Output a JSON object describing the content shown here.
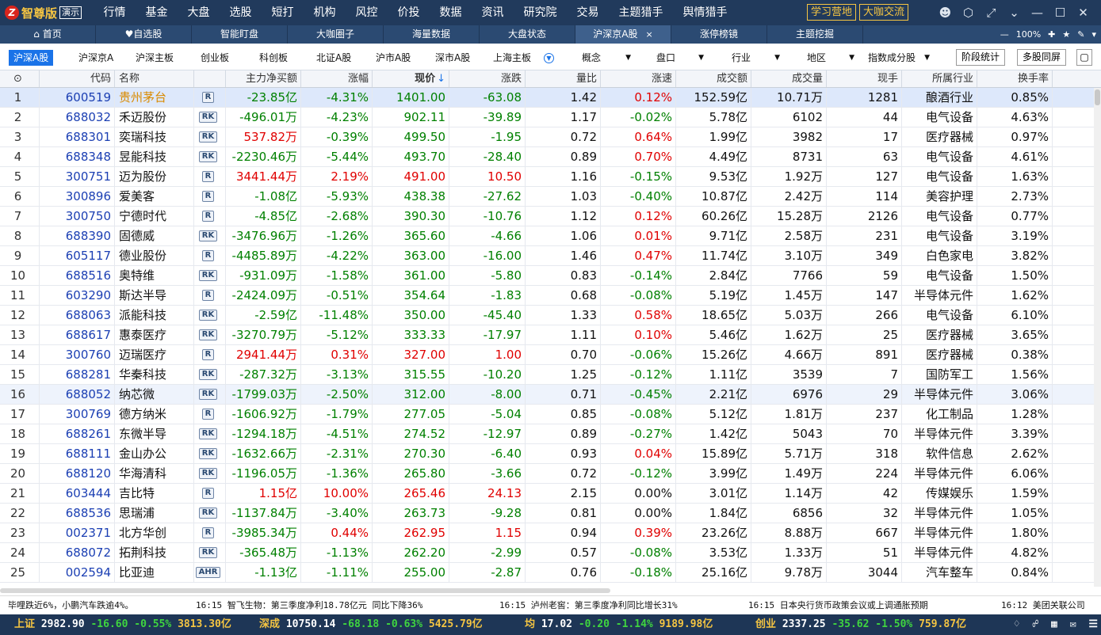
{
  "app": {
    "logo_glyph": "Z",
    "logo_text": "智尊版",
    "demo_label": "演示"
  },
  "menu": [
    "行情",
    "基金",
    "大盘",
    "选股",
    "短打",
    "机构",
    "风控",
    "价投",
    "数据",
    "资讯",
    "研究院",
    "交易",
    "主题猎手",
    "舆情猎手"
  ],
  "top_buttons": [
    "学习营地",
    "大咖交流"
  ],
  "window_controls": [
    "user-icon",
    "settings-icon",
    "shrink-icon",
    "chevron-down-icon",
    "minimize-icon",
    "maximize-icon",
    "close-icon"
  ],
  "tabs": [
    {
      "label": "首页",
      "icon": "home-icon"
    },
    {
      "label": "自选股",
      "icon": "heart-icon"
    },
    {
      "label": "智能盯盘"
    },
    {
      "label": "大咖圈子"
    },
    {
      "label": "海量数据"
    },
    {
      "label": "大盘状态"
    },
    {
      "label": "沪深京A股",
      "active": true,
      "close": "×"
    },
    {
      "label": "涨停榜镜"
    },
    {
      "label": "主题挖掘"
    }
  ],
  "zoom": "100%",
  "filters": {
    "items": [
      "沪深A股",
      "沪深京A",
      "沪深主板",
      "创业板",
      "科创板",
      "北证A股",
      "沪市A股",
      "深市A股",
      "上海主板"
    ],
    "dropdowns": [
      "概念",
      "盘口",
      "行业",
      "地区",
      "指数成分股"
    ],
    "buttons": [
      "阶段统计",
      "多股同屏"
    ]
  },
  "table": {
    "headers": [
      "",
      "代码",
      "名称",
      "",
      "主力净买额",
      "涨幅",
      "现价",
      "涨跌",
      "量比",
      "涨速",
      "成交额",
      "成交量",
      "现手",
      "所属行业",
      "换手率"
    ],
    "sort_mark": "↓",
    "rows": [
      [
        "1",
        "600519",
        "贵州茅台",
        "R",
        "-23.85亿",
        "-4.31%",
        "1401.00",
        "-63.08",
        "1.42",
        "0.12%",
        "152.59亿",
        "10.71万",
        "1281",
        "酿酒行业",
        "0.85%"
      ],
      [
        "2",
        "688032",
        "禾迈股份",
        "RK",
        "-496.01万",
        "-4.23%",
        "902.11",
        "-39.89",
        "1.17",
        "-0.02%",
        "5.78亿",
        "6102",
        "44",
        "电气设备",
        "4.63%"
      ],
      [
        "3",
        "688301",
        "奕瑞科技",
        "RK",
        "537.82万",
        "-0.39%",
        "499.50",
        "-1.95",
        "0.72",
        "0.64%",
        "1.99亿",
        "3982",
        "17",
        "医疗器械",
        "0.97%"
      ],
      [
        "4",
        "688348",
        "昱能科技",
        "RK",
        "-2230.46万",
        "-5.44%",
        "493.70",
        "-28.40",
        "0.89",
        "0.70%",
        "4.49亿",
        "8731",
        "63",
        "电气设备",
        "4.61%"
      ],
      [
        "5",
        "300751",
        "迈为股份",
        "R",
        "3441.44万",
        "2.19%",
        "491.00",
        "10.50",
        "1.16",
        "-0.15%",
        "9.53亿",
        "1.92万",
        "127",
        "电气设备",
        "1.63%"
      ],
      [
        "6",
        "300896",
        "爱美客",
        "R",
        "-1.08亿",
        "-5.93%",
        "438.38",
        "-27.62",
        "1.03",
        "-0.40%",
        "10.87亿",
        "2.42万",
        "114",
        "美容护理",
        "2.73%"
      ],
      [
        "7",
        "300750",
        "宁德时代",
        "R",
        "-4.85亿",
        "-2.68%",
        "390.30",
        "-10.76",
        "1.12",
        "0.12%",
        "60.26亿",
        "15.28万",
        "2126",
        "电气设备",
        "0.77%"
      ],
      [
        "8",
        "688390",
        "固德威",
        "RK",
        "-3476.96万",
        "-1.26%",
        "365.60",
        "-4.66",
        "1.06",
        "0.01%",
        "9.71亿",
        "2.58万",
        "231",
        "电气设备",
        "3.19%"
      ],
      [
        "9",
        "605117",
        "德业股份",
        "R",
        "-4485.89万",
        "-4.22%",
        "363.00",
        "-16.00",
        "1.46",
        "0.47%",
        "11.74亿",
        "3.10万",
        "349",
        "白色家电",
        "3.82%"
      ],
      [
        "10",
        "688516",
        "奥特维",
        "RK",
        "-931.09万",
        "-1.58%",
        "361.00",
        "-5.80",
        "0.83",
        "-0.14%",
        "2.84亿",
        "7766",
        "59",
        "电气设备",
        "1.50%"
      ],
      [
        "11",
        "603290",
        "斯达半导",
        "R",
        "-2424.09万",
        "-0.51%",
        "354.64",
        "-1.83",
        "0.68",
        "-0.08%",
        "5.19亿",
        "1.45万",
        "147",
        "半导体元件",
        "1.62%"
      ],
      [
        "12",
        "688063",
        "派能科技",
        "RK",
        "-2.59亿",
        "-11.48%",
        "350.00",
        "-45.40",
        "1.33",
        "0.58%",
        "18.65亿",
        "5.03万",
        "266",
        "电气设备",
        "6.10%"
      ],
      [
        "13",
        "688617",
        "惠泰医疗",
        "RK",
        "-3270.79万",
        "-5.12%",
        "333.33",
        "-17.97",
        "1.11",
        "0.10%",
        "5.46亿",
        "1.62万",
        "25",
        "医疗器械",
        "3.65%"
      ],
      [
        "14",
        "300760",
        "迈瑞医疗",
        "R",
        "2941.44万",
        "0.31%",
        "327.00",
        "1.00",
        "0.70",
        "-0.06%",
        "15.26亿",
        "4.66万",
        "891",
        "医疗器械",
        "0.38%"
      ],
      [
        "15",
        "688281",
        "华秦科技",
        "RK",
        "-287.32万",
        "-3.13%",
        "315.55",
        "-10.20",
        "1.25",
        "-0.12%",
        "1.11亿",
        "3539",
        "7",
        "国防军工",
        "1.56%"
      ],
      [
        "16",
        "688052",
        "纳芯微",
        "RK",
        "-1799.03万",
        "-2.50%",
        "312.00",
        "-8.00",
        "0.71",
        "-0.45%",
        "2.21亿",
        "6976",
        "29",
        "半导体元件",
        "3.06%"
      ],
      [
        "17",
        "300769",
        "德方纳米",
        "R",
        "-1606.92万",
        "-1.79%",
        "277.05",
        "-5.04",
        "0.85",
        "-0.08%",
        "5.12亿",
        "1.81万",
        "237",
        "化工制品",
        "1.28%"
      ],
      [
        "18",
        "688261",
        "东微半导",
        "RK",
        "-1294.18万",
        "-4.51%",
        "274.52",
        "-12.97",
        "0.89",
        "-0.27%",
        "1.42亿",
        "5043",
        "70",
        "半导体元件",
        "3.39%"
      ],
      [
        "19",
        "688111",
        "金山办公",
        "RK",
        "-1632.66万",
        "-2.31%",
        "270.30",
        "-6.40",
        "0.93",
        "0.04%",
        "15.89亿",
        "5.71万",
        "318",
        "软件信息",
        "2.62%"
      ],
      [
        "20",
        "688120",
        "华海清科",
        "RK",
        "-1196.05万",
        "-1.36%",
        "265.80",
        "-3.66",
        "0.72",
        "-0.12%",
        "3.99亿",
        "1.49万",
        "224",
        "半导体元件",
        "6.06%"
      ],
      [
        "21",
        "603444",
        "吉比特",
        "R",
        "1.15亿",
        "10.00%",
        "265.46",
        "24.13",
        "2.15",
        "0.00%",
        "3.01亿",
        "1.14万",
        "42",
        "传媒娱乐",
        "1.59%"
      ],
      [
        "22",
        "688536",
        "思瑞浦",
        "RK",
        "-1137.84万",
        "-3.40%",
        "263.73",
        "-9.28",
        "0.81",
        "0.00%",
        "1.84亿",
        "6856",
        "32",
        "半导体元件",
        "1.05%"
      ],
      [
        "23",
        "002371",
        "北方华创",
        "R",
        "-3985.34万",
        "0.44%",
        "262.95",
        "1.15",
        "0.94",
        "0.39%",
        "23.26亿",
        "8.88万",
        "667",
        "半导体元件",
        "1.80%"
      ],
      [
        "24",
        "688072",
        "拓荆科技",
        "RK",
        "-365.48万",
        "-1.13%",
        "262.20",
        "-2.99",
        "0.57",
        "-0.08%",
        "3.53亿",
        "1.33万",
        "51",
        "半导体元件",
        "4.82%"
      ],
      [
        "25",
        "002594",
        "比亚迪",
        "AHR",
        "-1.13亿",
        "-1.11%",
        "255.00",
        "-2.87",
        "0.76",
        "-0.18%",
        "25.16亿",
        "9.78万",
        "3044",
        "汽车整车",
        "0.84%"
      ]
    ]
  },
  "news": [
    "毕哩跌近6%，小鹏汽车跌逾4%。",
    "16:15 智飞生物：第三季度净利18.78亿元 同比下降36%",
    "16:15 泸州老窖：第三季度净利同比增长31%",
    "16:15 日本央行货币政策会议或上调通胀预期",
    "16:12 美团关联公司"
  ],
  "ticker": [
    {
      "name": "上证",
      "value": "2982.90",
      "change": "-16.60",
      "pct": "-0.55%",
      "amount": "3813.30亿"
    },
    {
      "name": "深成",
      "value": "10750.14",
      "change": "-68.18",
      "pct": "-0.63%",
      "amount": "5425.79亿"
    },
    {
      "name": "均",
      "value": "17.02",
      "change": "-0.20",
      "pct": "-1.14%",
      "amount": "9189.98亿"
    },
    {
      "name": "创业",
      "value": "2337.25",
      "change": "-35.62",
      "pct": "-1.50%",
      "amount": "759.87亿"
    }
  ],
  "colors": {
    "up": "#e00000",
    "down": "#008000",
    "accent": "#1a73e8",
    "topbar": "#213a5c",
    "gold": "#f5c542"
  }
}
